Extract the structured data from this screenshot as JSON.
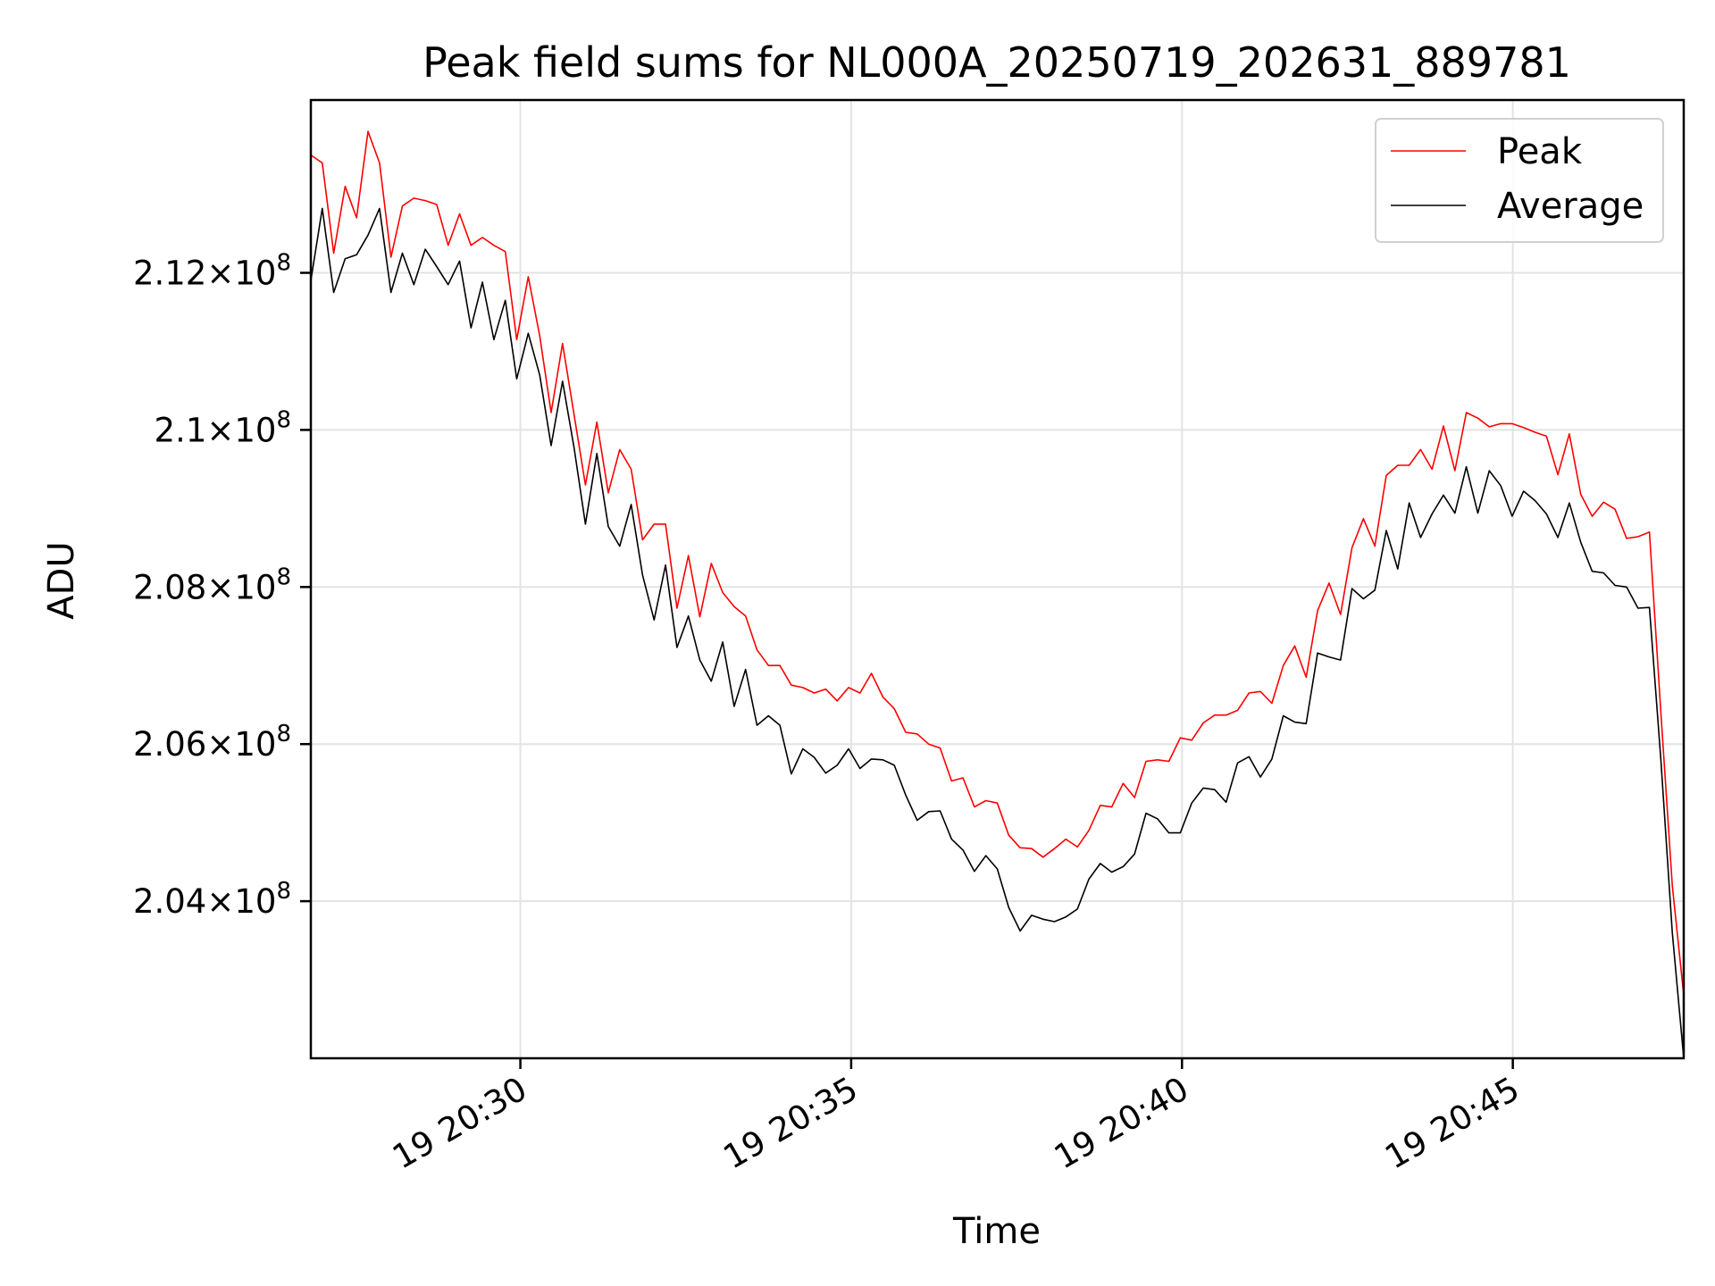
{
  "chart_data": {
    "type": "line",
    "title": "Peak field sums for NL000A_20250719_202631_889781",
    "xlabel": "Time",
    "ylabel": "ADU",
    "x_start": "20:26:50",
    "x_end": "20:47:35",
    "xlim": [
      "20:26:50",
      "20:47:35"
    ],
    "ylim": [
      202000000,
      214200000
    ],
    "grid": true,
    "legend_position": "top-right",
    "x_ticks": [
      {
        "time": "20:30",
        "label": "19 20:30"
      },
      {
        "time": "20:35",
        "label": "19 20:35"
      },
      {
        "time": "20:40",
        "label": "19 20:40"
      },
      {
        "time": "20:45",
        "label": "19 20:45"
      }
    ],
    "y_ticks": [
      {
        "value": 204000000,
        "base": "2.04",
        "exp": "8"
      },
      {
        "value": 206000000,
        "base": "2.06",
        "exp": "8"
      },
      {
        "value": 208000000,
        "base": "2.08",
        "exp": "8"
      },
      {
        "value": 210000000,
        "base": "2.1",
        "exp": "8"
      },
      {
        "value": 212000000,
        "base": "2.12",
        "exp": "8"
      }
    ],
    "series": [
      {
        "name": "Peak",
        "color": "#ff0000",
        "values": [
          213500000,
          213400000,
          212250000,
          213100000,
          212700000,
          213800000,
          213400000,
          212200000,
          212850000,
          212950000,
          212920000,
          212870000,
          212350000,
          212750000,
          212350000,
          212450000,
          212350000,
          212270000,
          211150000,
          211950000,
          211200000,
          210220000,
          211100000,
          210200000,
          209300000,
          210100000,
          209200000,
          209750000,
          209500000,
          208600000,
          208800000,
          208800000,
          207730000,
          208400000,
          207620000,
          208300000,
          207930000,
          207750000,
          207630000,
          207200000,
          207000000,
          207000000,
          206750000,
          206720000,
          206650000,
          206700000,
          206550000,
          206720000,
          206650000,
          206900000,
          206600000,
          206450000,
          206150000,
          206130000,
          206000000,
          205950000,
          205530000,
          205570000,
          205200000,
          205280000,
          205250000,
          204840000,
          204680000,
          204670000,
          204560000,
          204670000,
          204790000,
          204690000,
          204900000,
          205220000,
          205200000,
          205500000,
          205320000,
          205780000,
          205800000,
          205780000,
          206080000,
          206050000,
          206270000,
          206370000,
          206370000,
          206430000,
          206650000,
          206670000,
          206520000,
          207000000,
          207250000,
          206850000,
          207700000,
          208050000,
          207650000,
          208500000,
          208870000,
          208520000,
          209420000,
          209550000,
          209550000,
          209750000,
          209500000,
          210050000,
          209480000,
          210220000,
          210150000,
          210040000,
          210080000,
          210080000,
          210030000,
          209970000,
          209920000,
          209430000,
          209950000,
          209180000,
          208900000,
          209080000,
          208990000,
          208620000,
          208640000,
          208700000,
          206400000,
          204200000,
          202800000
        ]
      },
      {
        "name": "Average",
        "color": "#000000",
        "values": [
          211900000,
          212820000,
          211750000,
          212180000,
          212230000,
          212480000,
          212820000,
          211750000,
          212250000,
          211850000,
          212300000,
          212080000,
          211850000,
          212150000,
          211300000,
          211880000,
          211150000,
          211650000,
          210650000,
          211230000,
          210700000,
          209800000,
          210620000,
          209780000,
          208800000,
          209700000,
          208770000,
          208520000,
          209050000,
          208150000,
          207580000,
          208280000,
          207230000,
          207630000,
          207070000,
          206800000,
          207300000,
          206480000,
          206950000,
          206240000,
          206360000,
          206240000,
          205620000,
          205940000,
          205830000,
          205630000,
          205730000,
          205940000,
          205690000,
          205810000,
          205800000,
          205730000,
          205350000,
          205030000,
          205140000,
          205150000,
          204790000,
          204650000,
          204380000,
          204580000,
          204410000,
          203920000,
          203620000,
          203820000,
          203770000,
          203740000,
          203800000,
          203900000,
          204280000,
          204480000,
          204370000,
          204440000,
          204600000,
          205120000,
          205050000,
          204870000,
          204870000,
          205250000,
          205440000,
          205420000,
          205260000,
          205760000,
          205840000,
          205580000,
          205810000,
          206360000,
          206280000,
          206260000,
          207160000,
          207110000,
          207070000,
          207980000,
          207850000,
          207960000,
          208720000,
          208230000,
          209070000,
          208630000,
          208930000,
          209170000,
          208940000,
          209530000,
          208940000,
          209480000,
          209290000,
          208900000,
          209220000,
          209100000,
          208930000,
          208630000,
          209070000,
          208570000,
          208200000,
          208180000,
          208020000,
          208000000,
          207730000,
          207740000,
          205800000,
          203600000,
          202000000
        ]
      }
    ]
  }
}
